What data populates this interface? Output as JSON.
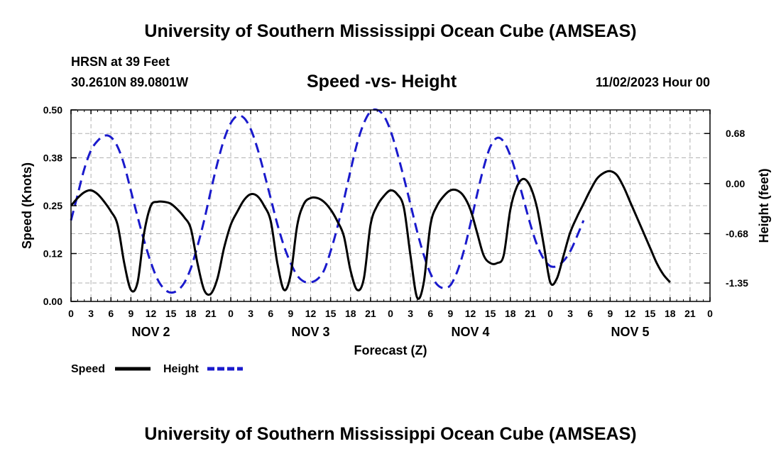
{
  "header": {
    "title_top": "University of Southern Mississippi Ocean Cube (AMSEAS)",
    "station": "HRSN at 39 Feet",
    "coords": "30.2610N  89.0801W",
    "subtitle": "Speed -vs- Height",
    "datetime": "11/02/2023 Hour 00",
    "title_bottom": "University of Southern Mississippi Ocean Cube (AMSEAS)"
  },
  "legend": {
    "speed_label": "Speed",
    "height_label": "Height"
  },
  "colors": {
    "speed": "#000000",
    "height": "#1a1acc",
    "grid": "#b0b0b0"
  },
  "chart_data": {
    "type": "line",
    "title": "Speed -vs- Height",
    "xlabel": "Forecast (Z)",
    "ylabel": "Speed (Knots)",
    "y2label": "Height (feet)",
    "x_unit": "hours from 11/02/2023 00Z",
    "xlim": [
      0,
      96
    ],
    "ylim": [
      0,
      0.5
    ],
    "y2lim": [
      -1.6,
      1.0
    ],
    "x_ticks": [
      0,
      3,
      6,
      9,
      12,
      15,
      18,
      21,
      24,
      27,
      30,
      33,
      36,
      39,
      42,
      45,
      48,
      51,
      54,
      57,
      60,
      63,
      66,
      69,
      72,
      75,
      78,
      81,
      84,
      87,
      90,
      93,
      96
    ],
    "x_tick_labels": [
      "0",
      "3",
      "6",
      "9",
      "12",
      "15",
      "18",
      "21",
      "0",
      "3",
      "6",
      "9",
      "12",
      "15",
      "18",
      "21",
      "0",
      "3",
      "6",
      "9",
      "12",
      "15",
      "18",
      "21",
      "0",
      "3",
      "6",
      "9",
      "12",
      "15",
      "18",
      "21",
      "0"
    ],
    "day_labels": [
      {
        "label": "NOV 2",
        "center_hour": 12
      },
      {
        "label": "NOV 3",
        "center_hour": 36
      },
      {
        "label": "NOV 4",
        "center_hour": 60
      },
      {
        "label": "NOV 5",
        "center_hour": 84
      }
    ],
    "y_ticks": [
      0.0,
      0.125,
      0.25,
      0.375,
      0.5
    ],
    "y_tick_labels": [
      "0.00",
      "0.12",
      "0.25",
      "0.38",
      "0.50"
    ],
    "y2_ticks": [
      0.68,
      0.0,
      -0.68,
      -1.35
    ],
    "y2_tick_labels": [
      "0.68",
      "0.00",
      "-0.68",
      "-1.35"
    ],
    "grid": true,
    "series": [
      {
        "name": "Speed",
        "axis": "left",
        "style": "solid",
        "points": [
          [
            0,
            0.25
          ],
          [
            1,
            0.27
          ],
          [
            2,
            0.285
          ],
          [
            3,
            0.29
          ],
          [
            4,
            0.28
          ],
          [
            5,
            0.26
          ],
          [
            6,
            0.235
          ],
          [
            7,
            0.2
          ],
          [
            8,
            0.1
          ],
          [
            9,
            0.03
          ],
          [
            10,
            0.05
          ],
          [
            11,
            0.18
          ],
          [
            12,
            0.25
          ],
          [
            13,
            0.26
          ],
          [
            14,
            0.26
          ],
          [
            15,
            0.255
          ],
          [
            16,
            0.24
          ],
          [
            17,
            0.22
          ],
          [
            18,
            0.19
          ],
          [
            19,
            0.1
          ],
          [
            20,
            0.03
          ],
          [
            21,
            0.02
          ],
          [
            22,
            0.06
          ],
          [
            23,
            0.14
          ],
          [
            24,
            0.2
          ],
          [
            25,
            0.235
          ],
          [
            26,
            0.265
          ],
          [
            27,
            0.28
          ],
          [
            28,
            0.275
          ],
          [
            29,
            0.25
          ],
          [
            30,
            0.21
          ],
          [
            31,
            0.1
          ],
          [
            32,
            0.03
          ],
          [
            33,
            0.07
          ],
          [
            34,
            0.2
          ],
          [
            35,
            0.255
          ],
          [
            36,
            0.27
          ],
          [
            37,
            0.27
          ],
          [
            38,
            0.26
          ],
          [
            39,
            0.24
          ],
          [
            40,
            0.21
          ],
          [
            41,
            0.17
          ],
          [
            42,
            0.08
          ],
          [
            43,
            0.03
          ],
          [
            44,
            0.06
          ],
          [
            45,
            0.2
          ],
          [
            46,
            0.25
          ],
          [
            47,
            0.275
          ],
          [
            48,
            0.29
          ],
          [
            49,
            0.28
          ],
          [
            50,
            0.245
          ],
          [
            51,
            0.12
          ],
          [
            52,
            0.01
          ],
          [
            53,
            0.05
          ],
          [
            54,
            0.2
          ],
          [
            55,
            0.25
          ],
          [
            56,
            0.275
          ],
          [
            57,
            0.29
          ],
          [
            58,
            0.29
          ],
          [
            59,
            0.275
          ],
          [
            60,
            0.24
          ],
          [
            61,
            0.18
          ],
          [
            62,
            0.12
          ],
          [
            63,
            0.1
          ],
          [
            64,
            0.1
          ],
          [
            65,
            0.12
          ],
          [
            66,
            0.24
          ],
          [
            67,
            0.3
          ],
          [
            68,
            0.32
          ],
          [
            69,
            0.3
          ],
          [
            70,
            0.245
          ],
          [
            71,
            0.15
          ],
          [
            72,
            0.05
          ],
          [
            73,
            0.06
          ],
          [
            74,
            0.12
          ],
          [
            75,
            0.18
          ],
          [
            76,
            0.22
          ],
          [
            77,
            0.255
          ],
          [
            78,
            0.29
          ],
          [
            79,
            0.32
          ],
          [
            80,
            0.335
          ],
          [
            81,
            0.34
          ],
          [
            82,
            0.33
          ],
          [
            83,
            0.3
          ],
          [
            84,
            0.26
          ],
          [
            85,
            0.22
          ],
          [
            86,
            0.18
          ],
          [
            87,
            0.14
          ],
          [
            88,
            0.1
          ],
          [
            89,
            0.07
          ],
          [
            90,
            0.05
          ]
        ]
      },
      {
        "name": "Height",
        "axis": "right",
        "style": "dashed",
        "points": [
          [
            0,
            -0.5
          ],
          [
            1,
            -0.15
          ],
          [
            2,
            0.2
          ],
          [
            3,
            0.45
          ],
          [
            4,
            0.58
          ],
          [
            5,
            0.65
          ],
          [
            6,
            0.63
          ],
          [
            7,
            0.5
          ],
          [
            8,
            0.25
          ],
          [
            9,
            -0.1
          ],
          [
            10,
            -0.45
          ],
          [
            11,
            -0.78
          ],
          [
            12,
            -1.07
          ],
          [
            13,
            -1.3
          ],
          [
            14,
            -1.43
          ],
          [
            15,
            -1.48
          ],
          [
            16,
            -1.45
          ],
          [
            17,
            -1.35
          ],
          [
            18,
            -1.15
          ],
          [
            19,
            -0.85
          ],
          [
            20,
            -0.5
          ],
          [
            21,
            -0.1
          ],
          [
            22,
            0.28
          ],
          [
            23,
            0.6
          ],
          [
            24,
            0.82
          ],
          [
            25,
            0.92
          ],
          [
            26,
            0.89
          ],
          [
            27,
            0.74
          ],
          [
            28,
            0.48
          ],
          [
            29,
            0.15
          ],
          [
            30,
            -0.2
          ],
          [
            31,
            -0.55
          ],
          [
            32,
            -0.85
          ],
          [
            33,
            -1.08
          ],
          [
            34,
            -1.25
          ],
          [
            35,
            -1.33
          ],
          [
            36,
            -1.34
          ],
          [
            37,
            -1.3
          ],
          [
            38,
            -1.18
          ],
          [
            39,
            -0.92
          ],
          [
            40,
            -0.6
          ],
          [
            41,
            -0.22
          ],
          [
            42,
            0.18
          ],
          [
            43,
            0.55
          ],
          [
            44,
            0.82
          ],
          [
            45,
            0.98
          ],
          [
            46,
            1.0
          ],
          [
            47,
            0.92
          ],
          [
            48,
            0.72
          ],
          [
            49,
            0.42
          ],
          [
            50,
            0.08
          ],
          [
            51,
            -0.28
          ],
          [
            52,
            -0.65
          ],
          [
            53,
            -0.97
          ],
          [
            54,
            -1.22
          ],
          [
            55,
            -1.37
          ],
          [
            56,
            -1.42
          ],
          [
            57,
            -1.38
          ],
          [
            58,
            -1.2
          ],
          [
            59,
            -0.92
          ],
          [
            60,
            -0.55
          ],
          [
            61,
            -0.15
          ],
          [
            62,
            0.22
          ],
          [
            63,
            0.5
          ],
          [
            64,
            0.62
          ],
          [
            65,
            0.57
          ],
          [
            66,
            0.38
          ],
          [
            67,
            0.1
          ],
          [
            68,
            -0.22
          ],
          [
            69,
            -0.55
          ],
          [
            70,
            -0.83
          ],
          [
            71,
            -1.02
          ],
          [
            72,
            -1.12
          ],
          [
            73,
            -1.12
          ],
          [
            74,
            -1.05
          ],
          [
            75,
            -0.92
          ],
          [
            76,
            -0.72
          ],
          [
            77,
            -0.5
          ]
        ]
      }
    ]
  }
}
